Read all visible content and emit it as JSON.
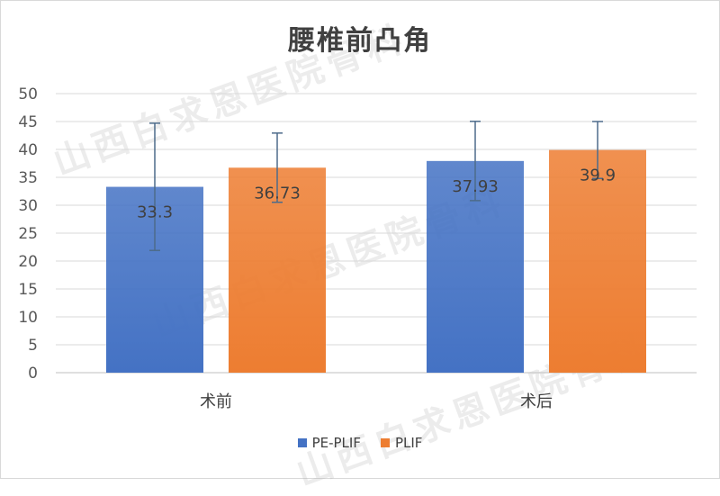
{
  "chart_data": {
    "type": "bar",
    "title": "腰椎前凸角",
    "categories": [
      "术前",
      "术后"
    ],
    "series": [
      {
        "name": "PE-PLIF",
        "values": [
          33.3,
          37.93
        ],
        "error": [
          11.4,
          7.1
        ],
        "color": "#4472c4",
        "labels": [
          "33.3",
          "37.93"
        ]
      },
      {
        "name": "PLIF",
        "values": [
          36.73,
          39.9
        ],
        "error": [
          6.2,
          5.1
        ],
        "color": "#ed7d31",
        "labels": [
          "36.73",
          "39.9"
        ]
      }
    ],
    "ylim": [
      0,
      50
    ],
    "yticks": [
      "0",
      "5",
      "10",
      "15",
      "20",
      "25",
      "30",
      "35",
      "40",
      "45",
      "50"
    ],
    "grid": true,
    "legend_position": "bottom"
  },
  "watermark": "山西白求恩医院骨科"
}
